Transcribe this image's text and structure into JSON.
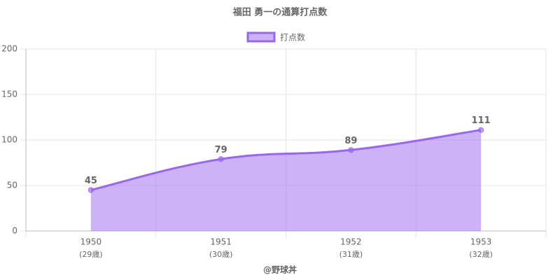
{
  "chart_data": {
    "type": "area",
    "title": "福田 勇一の通算打点数",
    "categories": [
      "1950",
      "1951",
      "1952",
      "1953"
    ],
    "category_sublabels": [
      "(29歳)",
      "(30歳)",
      "(31歳)",
      "(32歳)"
    ],
    "x_label": "@野球丼",
    "series": [
      {
        "name": "打点数",
        "color": "#9966ee",
        "values": [
          45,
          79,
          89,
          111
        ]
      }
    ],
    "ylim": [
      0,
      200
    ],
    "yticks": [
      0,
      50,
      100,
      150,
      200
    ],
    "grid": true,
    "legend": "top"
  }
}
